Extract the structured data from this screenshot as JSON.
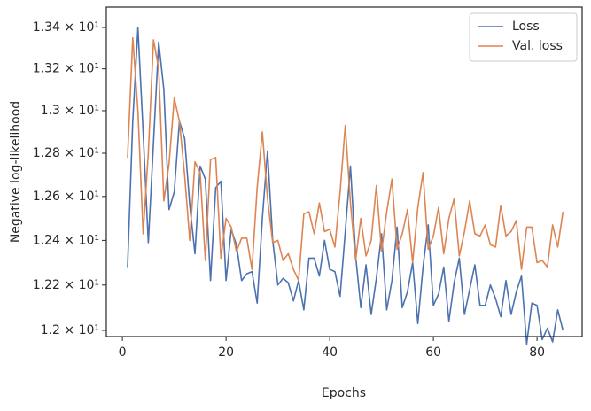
{
  "chart_data": {
    "type": "line",
    "xlabel": "Epochs",
    "ylabel": "Negative log-likelihood",
    "x": [
      1,
      2,
      3,
      4,
      5,
      6,
      7,
      8,
      9,
      10,
      11,
      12,
      13,
      14,
      15,
      16,
      17,
      18,
      19,
      20,
      21,
      22,
      23,
      24,
      25,
      26,
      27,
      28,
      29,
      30,
      31,
      32,
      33,
      34,
      35,
      36,
      37,
      38,
      39,
      40,
      41,
      42,
      43,
      44,
      45,
      46,
      47,
      48,
      49,
      50,
      51,
      52,
      53,
      54,
      55,
      56,
      57,
      58,
      59,
      60,
      61,
      62,
      63,
      64,
      65,
      66,
      67,
      68,
      69,
      70,
      71,
      72,
      73,
      74,
      75,
      76,
      77,
      78,
      79,
      80,
      81,
      82,
      83,
      84,
      85
    ],
    "series": [
      {
        "name": "Loss",
        "color": "#4c72b0",
        "values": [
          12.28,
          12.95,
          13.4,
          12.9,
          12.39,
          12.85,
          13.33,
          13.1,
          12.54,
          12.62,
          12.95,
          12.87,
          12.56,
          12.34,
          12.74,
          12.68,
          12.22,
          12.64,
          12.67,
          12.22,
          12.45,
          12.38,
          12.22,
          12.25,
          12.26,
          12.12,
          12.5,
          12.81,
          12.4,
          12.2,
          12.23,
          12.21,
          12.13,
          12.22,
          12.09,
          12.32,
          12.32,
          12.24,
          12.4,
          12.27,
          12.26,
          12.15,
          12.44,
          12.74,
          12.33,
          12.1,
          12.29,
          12.07,
          12.23,
          12.43,
          12.09,
          12.22,
          12.46,
          12.1,
          12.17,
          12.3,
          12.03,
          12.28,
          12.47,
          12.11,
          12.16,
          12.28,
          12.04,
          12.21,
          12.32,
          12.07,
          12.18,
          12.29,
          12.11,
          12.11,
          12.2,
          12.14,
          12.06,
          12.22,
          12.07,
          12.17,
          12.24,
          11.94,
          12.12,
          12.11,
          11.96,
          12.01,
          11.95,
          12.09,
          12.0
        ]
      },
      {
        "name": "Val. loss",
        "color": "#dd8452",
        "values": [
          12.78,
          13.35,
          13.0,
          12.43,
          12.8,
          13.34,
          13.2,
          12.58,
          12.75,
          13.06,
          12.95,
          12.7,
          12.4,
          12.76,
          12.71,
          12.31,
          12.77,
          12.78,
          12.32,
          12.5,
          12.46,
          12.35,
          12.41,
          12.41,
          12.27,
          12.64,
          12.9,
          12.59,
          12.39,
          12.4,
          12.31,
          12.34,
          12.27,
          12.22,
          12.52,
          12.53,
          12.43,
          12.57,
          12.44,
          12.45,
          12.37,
          12.62,
          12.93,
          12.57,
          12.31,
          12.5,
          12.33,
          12.4,
          12.65,
          12.35,
          12.53,
          12.68,
          12.36,
          12.43,
          12.54,
          12.3,
          12.55,
          12.71,
          12.36,
          12.42,
          12.55,
          12.34,
          12.5,
          12.59,
          12.33,
          12.44,
          12.58,
          12.43,
          12.42,
          12.47,
          12.38,
          12.37,
          12.56,
          12.42,
          12.44,
          12.49,
          12.27,
          12.46,
          12.46,
          12.3,
          12.31,
          12.28,
          12.47,
          12.37,
          12.53
        ]
      }
    ],
    "xlim": [
      -3.1,
      88.7
    ],
    "ylim": [
      11.973,
      13.5
    ],
    "xticks": [
      0,
      20,
      40,
      60,
      80
    ],
    "yticks": [
      {
        "value": 12.0,
        "label": "1.2 × 10¹"
      },
      {
        "value": 12.2,
        "label": "1.22 × 10¹"
      },
      {
        "value": 12.4,
        "label": "1.24 × 10¹"
      },
      {
        "value": 12.6,
        "label": "1.26 × 10¹"
      },
      {
        "value": 12.8,
        "label": "1.28 × 10¹"
      },
      {
        "value": 13.0,
        "label": "1.3 × 10¹"
      },
      {
        "value": 13.2,
        "label": "1.32 × 10¹"
      },
      {
        "value": 13.4,
        "label": "1.34 × 10¹"
      }
    ],
    "ylog": true,
    "grid": false,
    "legend": "upper right"
  }
}
